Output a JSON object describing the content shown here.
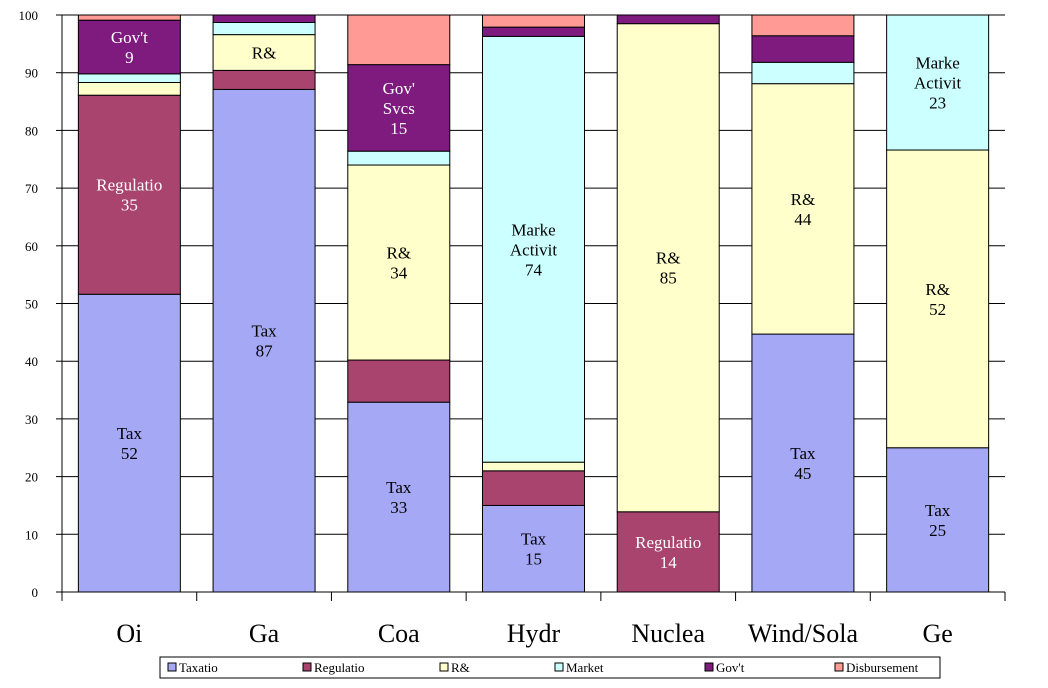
{
  "chart_data": {
    "type": "bar",
    "stacked": true,
    "categories": [
      "Oi",
      "Ga",
      "Coa",
      "Hydr",
      "Nuclea",
      "Wind/Sola",
      "Ge"
    ],
    "ylim": [
      0,
      100
    ],
    "yticks": [
      0,
      10,
      20,
      30,
      40,
      50,
      60,
      70,
      80,
      90,
      100
    ],
    "grid": true,
    "legend_position": "bottom",
    "series": [
      {
        "name": "Taxatio",
        "color": "#A5A8F5",
        "values": [
          51.6,
          87.1,
          32.9,
          15.0,
          0,
          44.7,
          25.0
        ]
      },
      {
        "name": "Regulatio",
        "color": "#A8446E",
        "values": [
          34.5,
          3.3,
          7.3,
          6.0,
          13.9,
          0,
          0
        ]
      },
      {
        "name": "R&",
        "color": "#FFFFCC",
        "values": [
          2.2,
          6.2,
          33.8,
          1.5,
          84.6,
          43.4,
          51.6
        ]
      },
      {
        "name": "Market",
        "color": "#CCFFFF",
        "values": [
          1.5,
          2.1,
          2.4,
          73.8,
          0,
          3.7,
          23.4
        ]
      },
      {
        "name": "Gov't",
        "color": "#7F1A7F",
        "values": [
          9.3,
          1.3,
          15.0,
          1.6,
          1.5,
          4.6,
          0
        ]
      },
      {
        "name": "Disbursement",
        "color": "#FF9B94",
        "values": [
          0.9,
          0,
          8.6,
          2.1,
          0,
          3.6,
          0
        ]
      }
    ],
    "data_labels": [
      {
        "category": "Oi",
        "series": "Taxatio",
        "name": "Tax",
        "value": "52",
        "color": "#000000"
      },
      {
        "category": "Oi",
        "series": "Regulatio",
        "name": "Regulatio",
        "value": "35",
        "color": "#ffffff"
      },
      {
        "category": "Oi",
        "series": "Gov't",
        "name": "Gov't",
        "value": "9",
        "color": "#ffffff"
      },
      {
        "category": "Ga",
        "series": "Taxatio",
        "name": "Tax",
        "value": "87",
        "color": "#000000"
      },
      {
        "category": "Ga",
        "series": "R&",
        "name": "R&",
        "value": "",
        "color": "#000000"
      },
      {
        "category": "Coa",
        "series": "Taxatio",
        "name": "Tax",
        "value": "33",
        "color": "#000000"
      },
      {
        "category": "Coa",
        "series": "R&",
        "name": "R&",
        "value": "34",
        "color": "#000000"
      },
      {
        "category": "Coa",
        "series": "Gov't",
        "name": "Gov'\nSvcs",
        "value": "15",
        "color": "#ffffff"
      },
      {
        "category": "Hydr",
        "series": "Taxatio",
        "name": "Tax",
        "value": "15",
        "color": "#000000"
      },
      {
        "category": "Hydr",
        "series": "Market",
        "name": "Marke\nActivit",
        "value": "74",
        "color": "#000000"
      },
      {
        "category": "Nuclea",
        "series": "Regulatio",
        "name": "Regulatio",
        "value": "14",
        "color": "#ffffff"
      },
      {
        "category": "Nuclea",
        "series": "R&",
        "name": "R&",
        "value": "85",
        "color": "#000000"
      },
      {
        "category": "Wind/Sola",
        "series": "Taxatio",
        "name": "Tax",
        "value": "45",
        "color": "#000000"
      },
      {
        "category": "Wind/Sola",
        "series": "R&",
        "name": "R&",
        "value": "44",
        "color": "#000000"
      },
      {
        "category": "Ge",
        "series": "Taxatio",
        "name": "Tax",
        "value": "25",
        "color": "#000000"
      },
      {
        "category": "Ge",
        "series": "R&",
        "name": "R&",
        "value": "52",
        "color": "#000000"
      },
      {
        "category": "Ge",
        "series": "Market",
        "name": "Marke\nActivit",
        "value": "23",
        "color": "#000000"
      }
    ]
  }
}
